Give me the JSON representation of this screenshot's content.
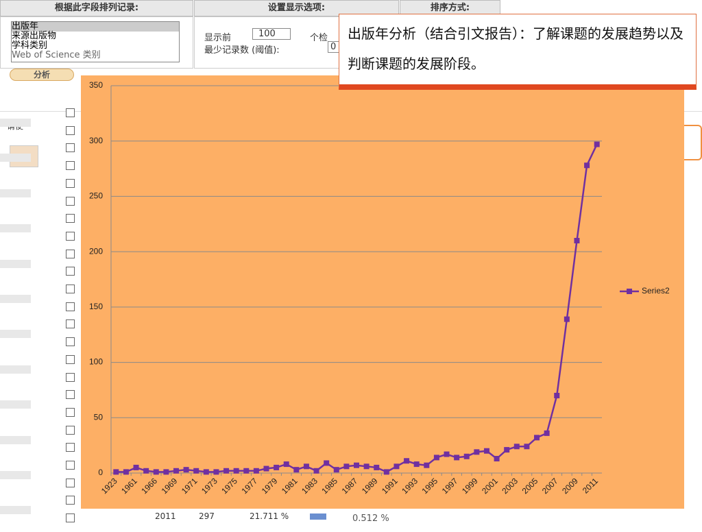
{
  "header": {
    "columns": [
      "根据此字段排列记录:",
      "设置显示选项:",
      "排序方式:"
    ]
  },
  "listbox": {
    "items": [
      "出版年",
      "来源出版物",
      "学科类别",
      "Web of Science 类别"
    ]
  },
  "display_options": {
    "show_first_label": "显示前",
    "show_first_value": "100",
    "show_first_suffix": "个检",
    "min_records_label": "最少记录数 (阈值):",
    "min_records_value": "0"
  },
  "analyze_button": "分析",
  "hint_text": "请使",
  "callout": "出版年分析（结合引文报告）：了解课题的发展趋势以及判断课题的发展阶段。",
  "bottom_row": [
    "2011",
    "297",
    "21.711 %",
    "0.512 %"
  ],
  "chart_data": {
    "type": "line",
    "categories": [
      "1923",
      null,
      "1961",
      null,
      "1966",
      null,
      "1969",
      null,
      "1971",
      null,
      "1973",
      null,
      "1975",
      null,
      "1977",
      null,
      "1979",
      null,
      "1981",
      null,
      "1983",
      null,
      "1985",
      null,
      "1987",
      null,
      "1989",
      null,
      "1991",
      null,
      "1993",
      null,
      "1995",
      null,
      "1997",
      null,
      "1999",
      null,
      "2001",
      null,
      "2003",
      null,
      "2005",
      null,
      "2007",
      null,
      "2009",
      null,
      "2011"
    ],
    "series": [
      {
        "name": "Series2",
        "color": "#7030a0",
        "values": [
          1,
          1,
          5,
          2,
          1,
          1,
          2,
          3,
          2,
          1,
          1,
          2,
          2,
          2,
          2,
          4,
          5,
          8,
          3,
          6,
          2,
          9,
          3,
          6,
          7,
          6,
          5,
          1,
          6,
          11,
          8,
          7,
          14,
          17,
          14,
          15,
          19,
          20,
          13,
          21,
          24,
          24,
          32,
          36,
          70,
          139,
          210,
          278,
          297
        ]
      }
    ],
    "ylim": [
      0,
      350
    ],
    "yticks": [
      0,
      50,
      100,
      150,
      200,
      250,
      300,
      350
    ],
    "grid": true,
    "legend": "right"
  }
}
